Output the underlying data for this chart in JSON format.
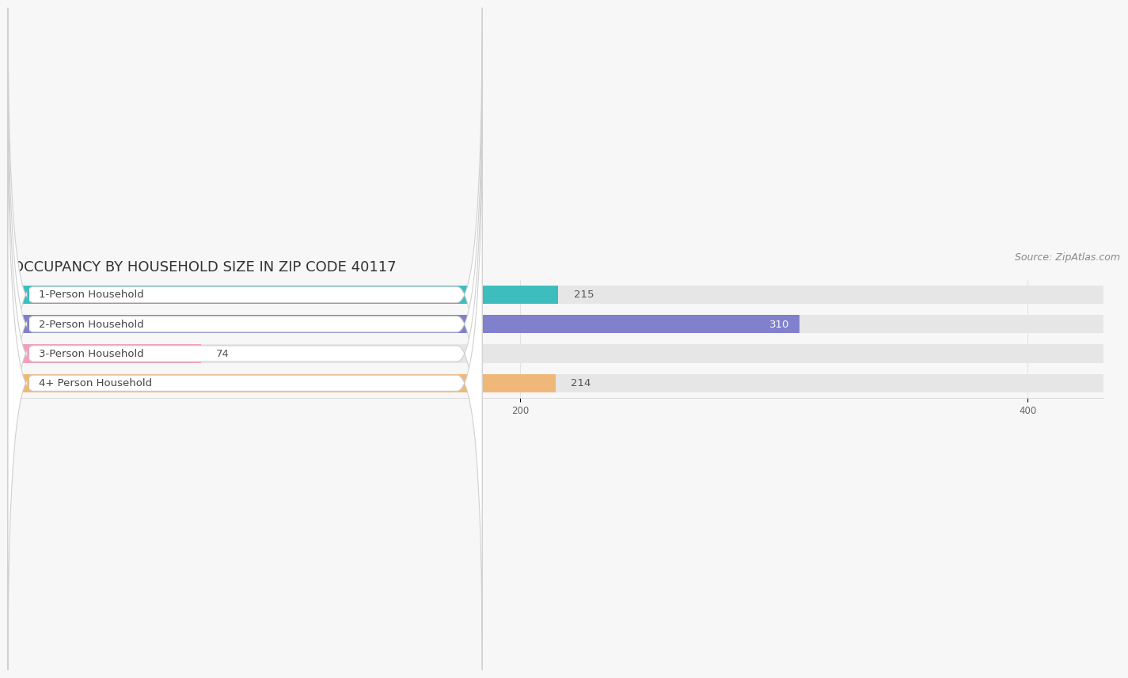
{
  "title": "OCCUPANCY BY HOUSEHOLD SIZE IN ZIP CODE 40117",
  "source": "Source: ZipAtlas.com",
  "categories": [
    "1-Person Household",
    "2-Person Household",
    "3-Person Household",
    "4+ Person Household"
  ],
  "values": [
    215,
    310,
    74,
    214
  ],
  "bar_colors": [
    "#3dbdbd",
    "#8080cc",
    "#f0a0b8",
    "#f0b878"
  ],
  "xlim": [
    0,
    430
  ],
  "xticks": [
    0,
    200,
    400
  ],
  "bg_color": "#f7f7f7",
  "bar_bg_color": "#e6e6e6",
  "title_fontsize": 13,
  "source_fontsize": 9,
  "label_fontsize": 9.5,
  "value_fontsize": 9.5,
  "bar_height": 0.62
}
